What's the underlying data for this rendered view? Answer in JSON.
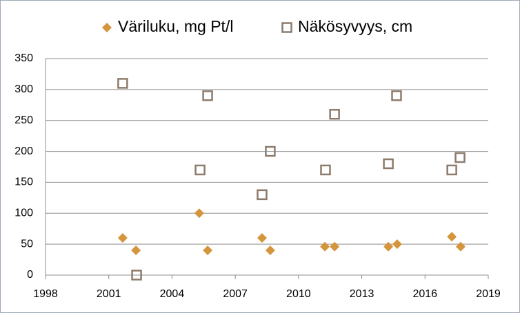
{
  "chart_data": {
    "type": "scatter",
    "series": [
      {
        "name": "Väriluku, mg Pt/l",
        "color": "#d4953c",
        "marker": "diamond",
        "x": [
          2001.66,
          2002.29,
          2005.29,
          2005.69,
          2008.27,
          2008.66,
          2011.25,
          2011.71,
          2014.26,
          2014.68,
          2017.27,
          2017.69
        ],
        "values": [
          60,
          40,
          100,
          40,
          60,
          40,
          46,
          46,
          46,
          50,
          62,
          46
        ]
      },
      {
        "name": "Näkösyvyys, cm",
        "color": "#8c7b6b",
        "marker": "square-open",
        "x": [
          2001.66,
          2002.32,
          2005.33,
          2005.69,
          2008.27,
          2008.66,
          2011.28,
          2011.71,
          2014.26,
          2014.65,
          2017.27,
          2017.66
        ],
        "values": [
          310,
          0,
          170,
          290,
          130,
          200,
          170,
          260,
          180,
          290,
          170,
          190
        ]
      }
    ],
    "xlim": [
      1998,
      2019
    ],
    "xticks": [
      1998,
      2001,
      2004,
      2007,
      2010,
      2013,
      2016,
      2019
    ],
    "ylim": [
      0,
      350
    ],
    "yticks": [
      0,
      50,
      100,
      150,
      200,
      250,
      300,
      350
    ],
    "grid": true,
    "legend": "top"
  }
}
